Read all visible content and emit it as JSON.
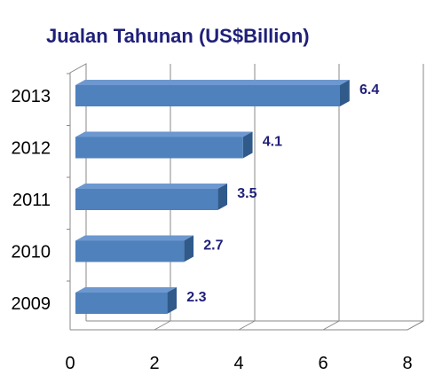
{
  "chart_data": {
    "type": "bar",
    "orientation": "horizontal",
    "title": "Jualan Tahunan (US$Billion)",
    "categories": [
      "2013",
      "2012",
      "2011",
      "2010",
      "2009"
    ],
    "values": [
      6.4,
      4.1,
      3.5,
      2.7,
      2.3
    ],
    "data_labels": [
      "6.4",
      "4.1",
      "3.5",
      "2.7",
      "2.3"
    ],
    "xlim": [
      0,
      8
    ],
    "x_ticks": [
      "0",
      "2",
      "4",
      "6",
      "8"
    ],
    "grid": true,
    "legend": "none",
    "colors": {
      "bar_front": "#4f81bd",
      "bar_top": "#6d98cf",
      "bar_side": "#2f5a8a",
      "title": "#1f1f7a",
      "label": "#1f1f7a"
    }
  }
}
